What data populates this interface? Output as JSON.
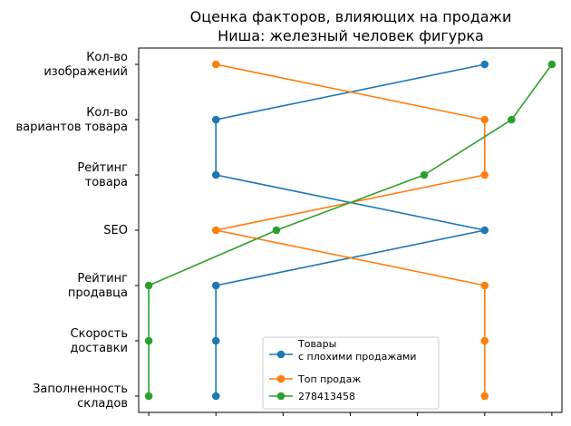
{
  "chart_data": {
    "type": "line",
    "title": [
      "Оценка факторов, влияющих на продажи",
      "Ниша: железный человек фигурка"
    ],
    "categories": [
      [
        "Заполненность",
        "складов"
      ],
      [
        "Скорость",
        "доставки"
      ],
      [
        "Рейтинг",
        "продавца"
      ],
      [
        "SEO"
      ],
      [
        "Рейтинг",
        "товара"
      ],
      [
        "Кол-во",
        "вариантов товара"
      ],
      [
        "Кол-во",
        "изображений"
      ]
    ],
    "xlim": [
      -0.15,
      6.15
    ],
    "x_ticks": [
      0,
      1,
      2,
      3,
      4,
      5,
      6
    ],
    "xtick_labels_visible": false,
    "legend_position": "lower-center",
    "series": [
      {
        "name": "Товары\nс плохими продажами",
        "color": "#1f77b4",
        "x": [
          1,
          1,
          1,
          5,
          1,
          1,
          5
        ]
      },
      {
        "name": "Топ продаж",
        "color": "#ff7f0e",
        "x": [
          5,
          5,
          5,
          1,
          5,
          5,
          1
        ]
      },
      {
        "name": "278413458",
        "color": "#2ca02c",
        "x": [
          0,
          0,
          0,
          1.9,
          4.1,
          5.4,
          6.0
        ]
      }
    ]
  }
}
